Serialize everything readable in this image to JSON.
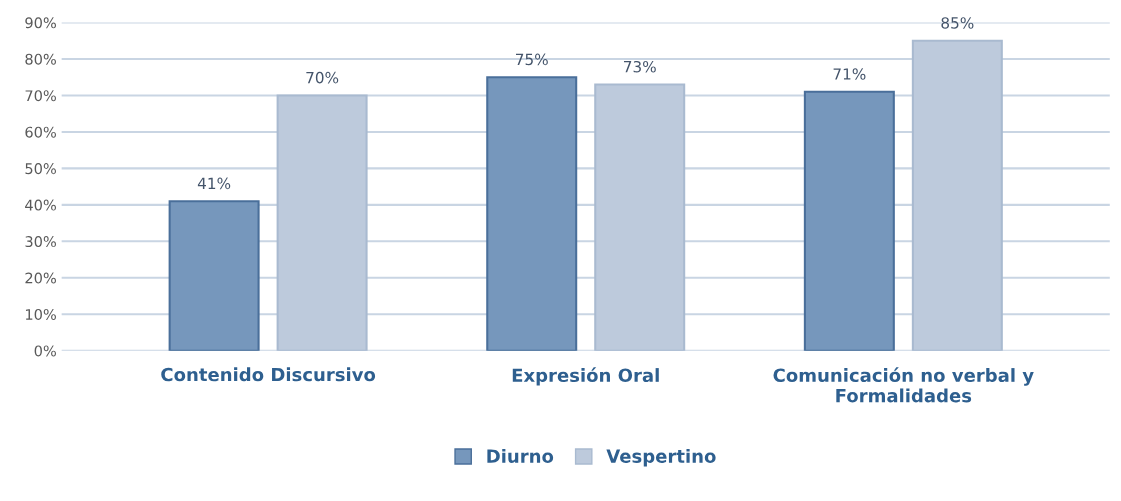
{
  "chart_data": {
    "type": "bar",
    "categories": [
      "Contenido Discursivo",
      "Expresión Oral",
      "Comunicación no verbal y\nFormalidades"
    ],
    "series": [
      {
        "name": "Diurno",
        "color": "#7697bc",
        "values": [
          41,
          75,
          71
        ],
        "value_labels": [
          "41%",
          "75%",
          "71%"
        ]
      },
      {
        "name": "Vespertino",
        "color": "#bdcadc",
        "values": [
          70,
          73,
          85
        ],
        "value_labels": [
          "70%",
          "73%",
          "85%"
        ]
      }
    ],
    "ylim": [
      0,
      90
    ],
    "yticks": [
      {
        "value": 0,
        "label": "0%"
      },
      {
        "value": 10,
        "label": "10%"
      },
      {
        "value": 20,
        "label": "20%"
      },
      {
        "value": 30,
        "label": "30%"
      },
      {
        "value": 40,
        "label": "40%"
      },
      {
        "value": 50,
        "label": "50%"
      },
      {
        "value": 60,
        "label": "60%"
      },
      {
        "value": 70,
        "label": "70%"
      },
      {
        "value": 80,
        "label": "80%"
      },
      {
        "value": 90,
        "label": "90%"
      }
    ],
    "grid": "y",
    "legend": "bottom"
  }
}
